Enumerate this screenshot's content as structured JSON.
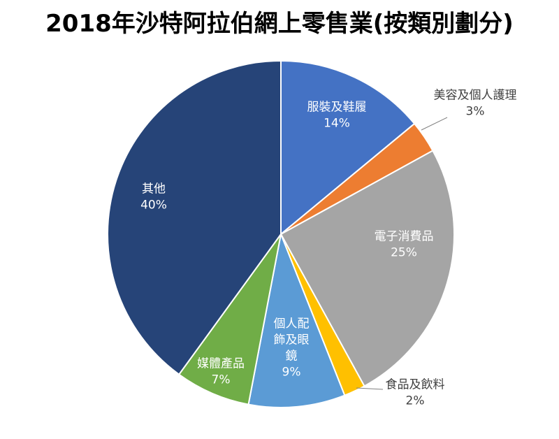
{
  "chart_data": {
    "type": "pie",
    "title": "2018年沙特阿拉伯網上零售業(按類別劃分)",
    "start_angle_deg": 0,
    "direction": "clockwise",
    "slices": [
      {
        "label_lines": [
          "服裝及鞋履"
        ],
        "value": 14,
        "value_label": "14%",
        "color": "#4472C4",
        "label_pos": "inside"
      },
      {
        "label_lines": [
          "美容及個人護理"
        ],
        "value": 3,
        "value_label": "3%",
        "color": "#ED7D31",
        "label_pos": "outside"
      },
      {
        "label_lines": [
          "電子消費品"
        ],
        "value": 25,
        "value_label": "25%",
        "color": "#A5A5A5",
        "label_pos": "inside"
      },
      {
        "label_lines": [
          "食品及飲料"
        ],
        "value": 2,
        "value_label": "2%",
        "color": "#FFC000",
        "label_pos": "outside"
      },
      {
        "label_lines": [
          "個人配",
          "飾及眼",
          "鏡"
        ],
        "value": 9,
        "value_label": "9%",
        "color": "#5B9BD5",
        "label_pos": "inside"
      },
      {
        "label_lines": [
          "媒體產品"
        ],
        "value": 7,
        "value_label": "7%",
        "color": "#70AD47",
        "label_pos": "inside"
      },
      {
        "label_lines": [
          "其他"
        ],
        "value": 40,
        "value_label": "40%",
        "color": "#264478",
        "label_pos": "inside"
      }
    ],
    "legend": "none"
  }
}
